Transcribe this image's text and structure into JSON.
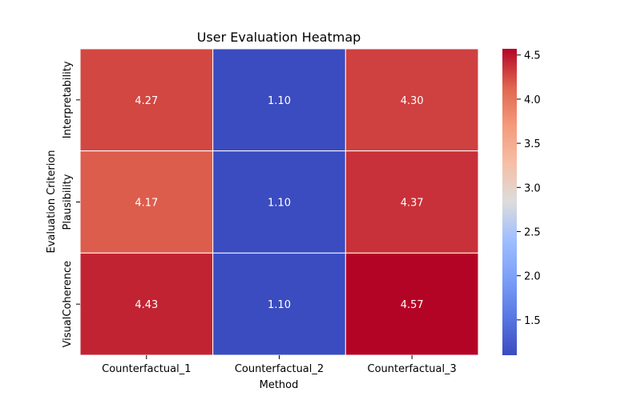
{
  "chart_data": {
    "type": "heatmap",
    "title": "User Evaluation Heatmap",
    "xlabel": "Method",
    "ylabel": "Evaluation Criterion",
    "x": [
      "Counterfactual_1",
      "Counterfactual_2",
      "Counterfactual_3"
    ],
    "y": [
      "Interpretability",
      "Plausibility",
      "VisualCoherence"
    ],
    "values": [
      [
        4.27,
        1.1,
        4.3
      ],
      [
        4.17,
        1.1,
        4.37
      ],
      [
        4.43,
        1.1,
        4.57
      ]
    ],
    "value_labels": [
      [
        "4.27",
        "1.10",
        "4.30"
      ],
      [
        "4.17",
        "1.10",
        "4.37"
      ],
      [
        "4.43",
        "1.10",
        "4.57"
      ]
    ],
    "colormap": "coolwarm",
    "colorbar": {
      "range": [
        1.1,
        4.57
      ],
      "ticks": [
        1.5,
        2.0,
        2.5,
        3.0,
        3.5,
        4.0,
        4.5
      ],
      "tick_labels": [
        "1.5",
        "2.0",
        "2.5",
        "3.0",
        "3.5",
        "4.0",
        "4.5"
      ]
    }
  }
}
